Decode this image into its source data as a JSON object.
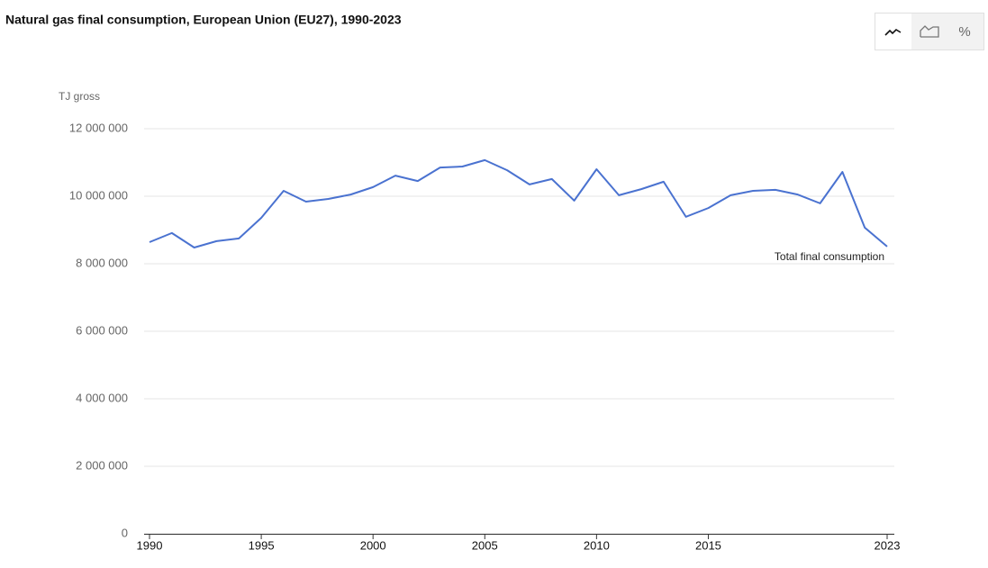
{
  "chart_data": {
    "type": "line",
    "title": "Natural gas final consumption, European Union (EU27), 1990-2023",
    "y_label": "TJ gross",
    "x": [
      1990,
      1991,
      1992,
      1993,
      1994,
      1995,
      1996,
      1997,
      1998,
      1999,
      2000,
      2001,
      2002,
      2003,
      2004,
      2005,
      2006,
      2007,
      2008,
      2009,
      2010,
      2011,
      2012,
      2013,
      2014,
      2015,
      2016,
      2017,
      2018,
      2019,
      2020,
      2021,
      2022,
      2023
    ],
    "series": [
      {
        "name": "Total final consumption",
        "color": "#4a72d0",
        "values": [
          8640000,
          8910000,
          8480000,
          8670000,
          8750000,
          9360000,
          10160000,
          9840000,
          9920000,
          10050000,
          10270000,
          10610000,
          10450000,
          10850000,
          10880000,
          11070000,
          10770000,
          10350000,
          10510000,
          9870000,
          10800000,
          10030000,
          10210000,
          10430000,
          9390000,
          9650000,
          10030000,
          10160000,
          10190000,
          10050000,
          9790000,
          10720000,
          9070000,
          8510000
        ]
      }
    ],
    "xlim": [
      1990,
      2023
    ],
    "xticks": [
      1990,
      1995,
      2000,
      2005,
      2010,
      2015,
      2023
    ],
    "ylim": [
      0,
      12000000
    ],
    "yticks": [
      0,
      {
        "value": 2000000,
        "label": "2 000 000"
      },
      {
        "value": 4000000,
        "label": "4 000 000"
      },
      {
        "value": 6000000,
        "label": "6 000 000"
      },
      {
        "value": 8000000,
        "label": "8 000 000"
      },
      {
        "value": 10000000,
        "label": "10 000 000"
      },
      {
        "value": 12000000,
        "label": "12 000 000"
      }
    ],
    "grid": true
  },
  "toolbar": {
    "percent_label": "%"
  }
}
